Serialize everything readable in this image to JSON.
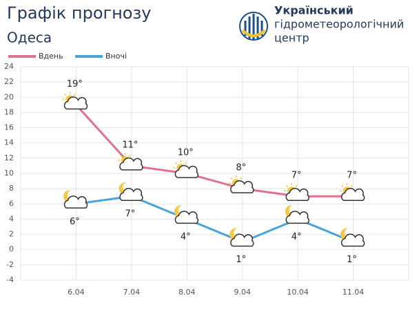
{
  "header": {
    "org_lines": [
      "Український",
      "гідрометеорологічний",
      "центр"
    ]
  },
  "chart_data": {
    "type": "line",
    "title": "Графік прогнозу",
    "subtitle": "Одеса",
    "categories": [
      "6.04",
      "7.04",
      "8.04",
      "9.04",
      "10.04",
      "11.04"
    ],
    "series": [
      {
        "name": "Вдень",
        "color": "#e0728f",
        "values": [
          19,
          11,
          10,
          8,
          7,
          7
        ],
        "value_labels": [
          "19°",
          "11°",
          "10°",
          "8°",
          "7°",
          "7°"
        ]
      },
      {
        "name": "Вночі",
        "color": "#4aa3d9",
        "values": [
          6,
          7,
          4,
          1,
          4,
          1
        ],
        "value_labels": [
          "6°",
          "7°",
          "4°",
          "1°",
          "4°",
          "1°"
        ]
      }
    ],
    "ylim": [
      -4,
      24
    ],
    "yticks": [
      -4,
      -2,
      0,
      2,
      4,
      6,
      8,
      10,
      12,
      14,
      16,
      18,
      20,
      22,
      24
    ],
    "grid": true
  }
}
